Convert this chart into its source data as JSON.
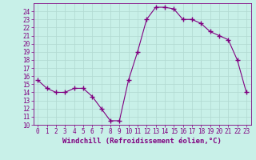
{
  "hours": [
    0,
    1,
    2,
    3,
    4,
    5,
    6,
    7,
    8,
    9,
    10,
    11,
    12,
    13,
    14,
    15,
    16,
    17,
    18,
    19,
    20,
    21,
    22,
    23
  ],
  "values": [
    15.5,
    14.5,
    14.0,
    14.0,
    14.5,
    14.5,
    13.5,
    12.0,
    10.5,
    10.5,
    15.5,
    19.0,
    23.0,
    24.5,
    24.5,
    24.3,
    23.0,
    23.0,
    22.5,
    21.5,
    21.0,
    20.5,
    18.0,
    14.0
  ],
  "line_color": "#800080",
  "marker": "+",
  "marker_size": 4,
  "marker_lw": 1.0,
  "bg_color": "#c8f0e8",
  "grid_color": "#b0d8d0",
  "xlabel": "Windchill (Refroidissement éolien,°C)",
  "ylim": [
    10,
    25
  ],
  "xlim": [
    -0.5,
    23.5
  ],
  "yticks": [
    10,
    11,
    12,
    13,
    14,
    15,
    16,
    17,
    18,
    19,
    20,
    21,
    22,
    23,
    24
  ],
  "xticks": [
    0,
    1,
    2,
    3,
    4,
    5,
    6,
    7,
    8,
    9,
    10,
    11,
    12,
    13,
    14,
    15,
    16,
    17,
    18,
    19,
    20,
    21,
    22,
    23
  ],
  "tick_color": "#800080",
  "tick_fontsize": 5.5,
  "xlabel_fontsize": 6.5,
  "spine_color": "#800080",
  "linewidth": 0.8
}
